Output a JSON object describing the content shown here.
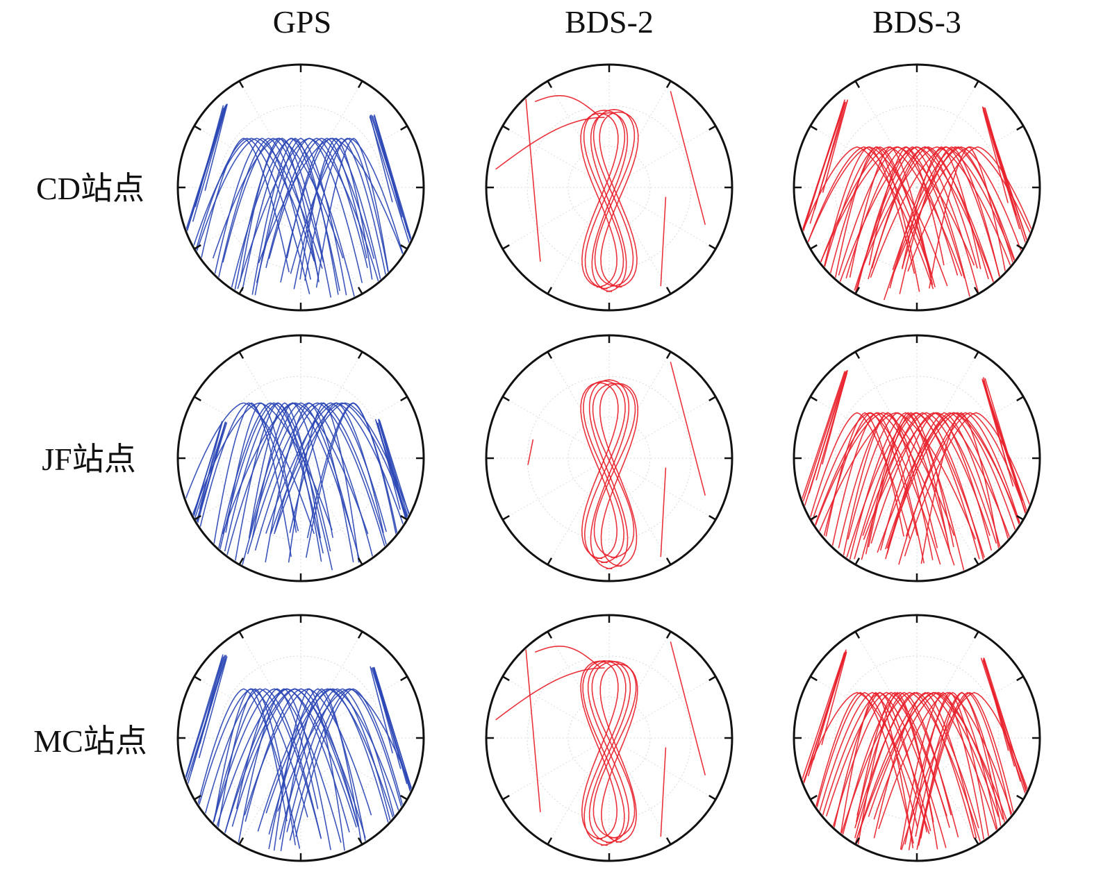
{
  "chart_data": {
    "type": "polar-skyplot",
    "title": "",
    "columns": [
      {
        "label": "GPS",
        "color": "#2b46b5",
        "kind": "gps"
      },
      {
        "label": "BDS-2",
        "color": "#e8212b",
        "kind": "bds2"
      },
      {
        "label": "BDS-3",
        "color": "#e8212b",
        "kind": "bds3"
      }
    ],
    "rows": [
      {
        "label": "CD站点"
      },
      {
        "label": "JF站点"
      },
      {
        "label": "MC站点"
      }
    ],
    "azimuth_ticks_deg": [
      0,
      30,
      60,
      90,
      120,
      150,
      180,
      210,
      240,
      270,
      300,
      330
    ],
    "elevation_rings_deg": [
      0,
      30,
      60,
      90
    ],
    "grid": true,
    "legend": "none"
  }
}
